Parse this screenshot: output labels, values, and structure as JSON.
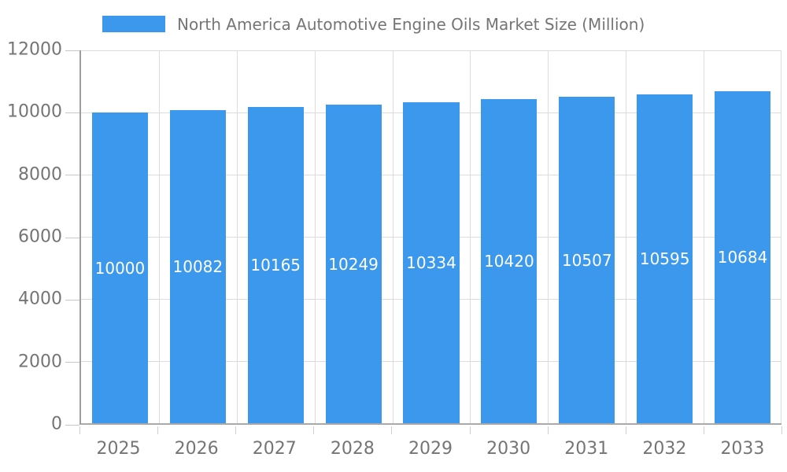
{
  "legend": {
    "label": "North America Automotive Engine Oils Market Size (Million)"
  },
  "chart_data": {
    "type": "bar",
    "title": "North America Automotive Engine Oils Market Size (Million)",
    "categories": [
      "2025",
      "2026",
      "2027",
      "2028",
      "2029",
      "2030",
      "2031",
      "2032",
      "2033"
    ],
    "values": [
      10000,
      10082,
      10165,
      10249,
      10334,
      10420,
      10507,
      10595,
      10684
    ],
    "series": [
      {
        "name": "North America Automotive Engine Oils Market Size (Million)",
        "values": [
          10000,
          10082,
          10165,
          10249,
          10334,
          10420,
          10507,
          10595,
          10684
        ]
      }
    ],
    "xlabel": "",
    "ylabel": "",
    "ylim": [
      0,
      12000
    ],
    "yticks": [
      0,
      2000,
      4000,
      6000,
      8000,
      10000,
      12000
    ],
    "grid": true,
    "legend_position": "top",
    "value_labels": "inside-center"
  },
  "colors": {
    "bar": "#3B98EC",
    "bar_value_text": "#FFFFFF",
    "axis_text": "#757575",
    "axis_line": "#A0A0A0",
    "gridline": "#DCDCDC",
    "background": "#FFFFFF"
  }
}
